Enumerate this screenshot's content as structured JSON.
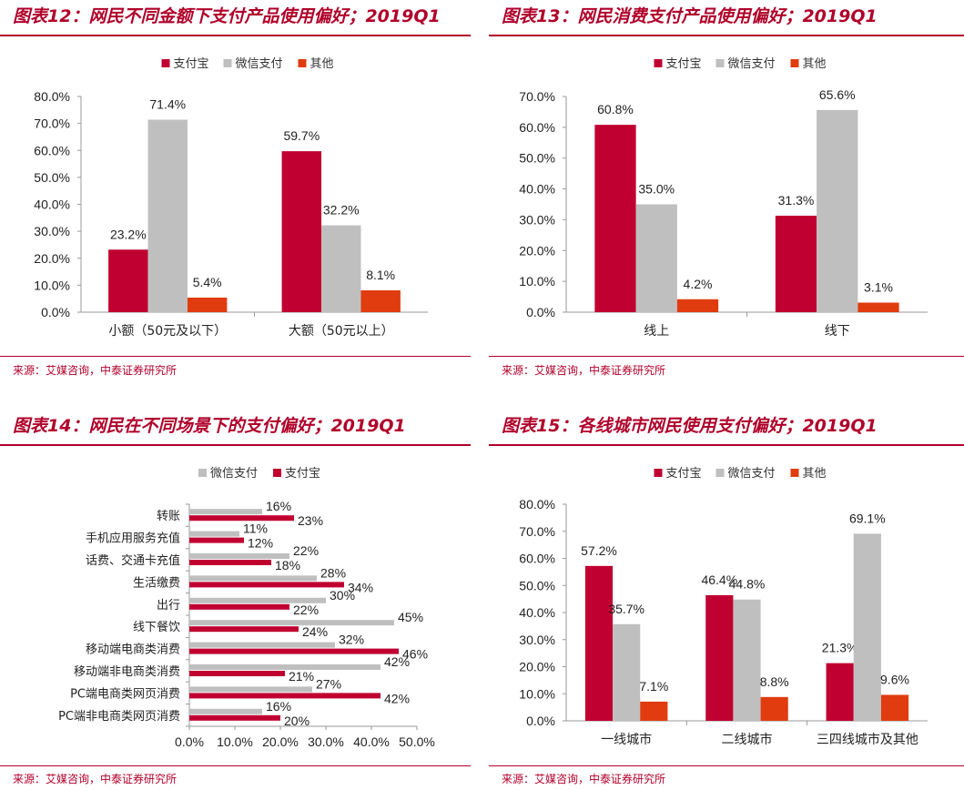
{
  "colors": {
    "alipay": "#c00030",
    "wechat": "#bfbfbf",
    "other": "#e03c10",
    "accent": "#b0002a"
  },
  "source": "来源：艾媒咨询，中泰证券研究所",
  "charts": [
    {
      "title": "图表12：网民不同金额下支付产品使用偏好；2019Q1",
      "chart_data": {
        "type": "bar",
        "categories": [
          "小额（50元及以下）",
          "大额（50元以上）"
        ],
        "series": [
          {
            "name": "支付宝",
            "values": [
              23.2,
              59.7
            ],
            "color": "#c00030"
          },
          {
            "name": "微信支付",
            "values": [
              71.4,
              32.2
            ],
            "color": "#bfbfbf"
          },
          {
            "name": "其他",
            "values": [
              5.4,
              8.1
            ],
            "color": "#e03c10"
          }
        ],
        "ylim": [
          0,
          80
        ],
        "yticks": [
          0,
          10,
          20,
          30,
          40,
          50,
          60,
          70,
          80
        ],
        "tick_labels": [
          "0.0%",
          "10.0%",
          "20.0%",
          "30.0%",
          "40.0%",
          "50.0%",
          "60.0%",
          "70.0%",
          "80.0%"
        ],
        "data_labels": [
          [
            "23.2%",
            "59.7%"
          ],
          [
            "71.4%",
            "32.2%"
          ],
          [
            "5.4%",
            "8.1%"
          ]
        ],
        "legend": "top-center",
        "grid": false
      }
    },
    {
      "title": "图表13：网民消费支付产品使用偏好；2019Q1",
      "chart_data": {
        "type": "bar",
        "categories": [
          "线上",
          "线下"
        ],
        "series": [
          {
            "name": "支付宝",
            "values": [
              60.8,
              31.3
            ],
            "color": "#c00030"
          },
          {
            "name": "微信支付",
            "values": [
              35.0,
              65.6
            ],
            "color": "#bfbfbf"
          },
          {
            "name": "其他",
            "values": [
              4.2,
              3.1
            ],
            "color": "#e03c10"
          }
        ],
        "ylim": [
          0,
          70
        ],
        "yticks": [
          0,
          10,
          20,
          30,
          40,
          50,
          60,
          70
        ],
        "tick_labels": [
          "0.0%",
          "10.0%",
          "20.0%",
          "30.0%",
          "40.0%",
          "50.0%",
          "60.0%",
          "70.0%"
        ],
        "data_labels": [
          [
            "60.8%",
            "31.3%"
          ],
          [
            "35.0%",
            "65.6%"
          ],
          [
            "4.2%",
            "3.1%"
          ]
        ],
        "legend": "top-center",
        "grid": false
      }
    },
    {
      "title": "图表14：网民在不同场景下的支付偏好；2019Q1",
      "chart_data": {
        "type": "bar",
        "orientation": "horizontal",
        "categories": [
          "转账",
          "手机应用服务充值",
          "话费、交通卡充值",
          "生活缴费",
          "出行",
          "线下餐饮",
          "移动端电商类消费",
          "移动端非电商类消费",
          "PC端电商类网页消费",
          "PC端非电商类网页消费"
        ],
        "series": [
          {
            "name": "微信支付",
            "values": [
              16,
              11,
              22,
              28,
              30,
              45,
              32,
              42,
              27,
              16
            ],
            "color": "#bfbfbf"
          },
          {
            "name": "支付宝",
            "values": [
              23,
              12,
              18,
              34,
              22,
              24,
              46,
              21,
              42,
              20
            ],
            "color": "#c00030"
          }
        ],
        "xlim": [
          0,
          50
        ],
        "xticks": [
          0,
          10,
          20,
          30,
          40,
          50
        ],
        "tick_labels": [
          "0.0%",
          "10.0%",
          "20.0%",
          "30.0%",
          "40.0%",
          "50.0%"
        ],
        "data_labels": [
          [
            "16%",
            "11%",
            "22%",
            "28%",
            "30%",
            "45%",
            "32%",
            "42%",
            "27%",
            "16%"
          ],
          [
            "23%",
            "12%",
            "18%",
            "34%",
            "22%",
            "24%",
            "46%",
            "21%",
            "42%",
            "20%"
          ]
        ],
        "legend": "top-center",
        "grid": false
      }
    },
    {
      "title": "图表15：各线城市网民使用支付偏好；2019Q1",
      "chart_data": {
        "type": "bar",
        "categories": [
          "一线城市",
          "二线城市",
          "三四线城市及其他"
        ],
        "series": [
          {
            "name": "支付宝",
            "values": [
              57.2,
              46.4,
              21.3
            ],
            "color": "#c00030"
          },
          {
            "name": "微信支付",
            "values": [
              35.7,
              44.8,
              69.1
            ],
            "color": "#bfbfbf"
          },
          {
            "name": "其他",
            "values": [
              7.1,
              8.8,
              9.6
            ],
            "color": "#e03c10"
          }
        ],
        "ylim": [
          0,
          80
        ],
        "yticks": [
          0,
          10,
          20,
          30,
          40,
          50,
          60,
          70,
          80
        ],
        "tick_labels": [
          "0.0%",
          "10.0%",
          "20.0%",
          "30.0%",
          "40.0%",
          "50.0%",
          "60.0%",
          "70.0%",
          "80.0%"
        ],
        "data_labels": [
          [
            "57.2%",
            "46.4%",
            "21.3%"
          ],
          [
            "35.7%",
            "44.8%",
            "69.1%"
          ],
          [
            "7.1%",
            "8.8%",
            "9.6%"
          ]
        ],
        "legend": "top-center",
        "grid": false
      }
    }
  ]
}
